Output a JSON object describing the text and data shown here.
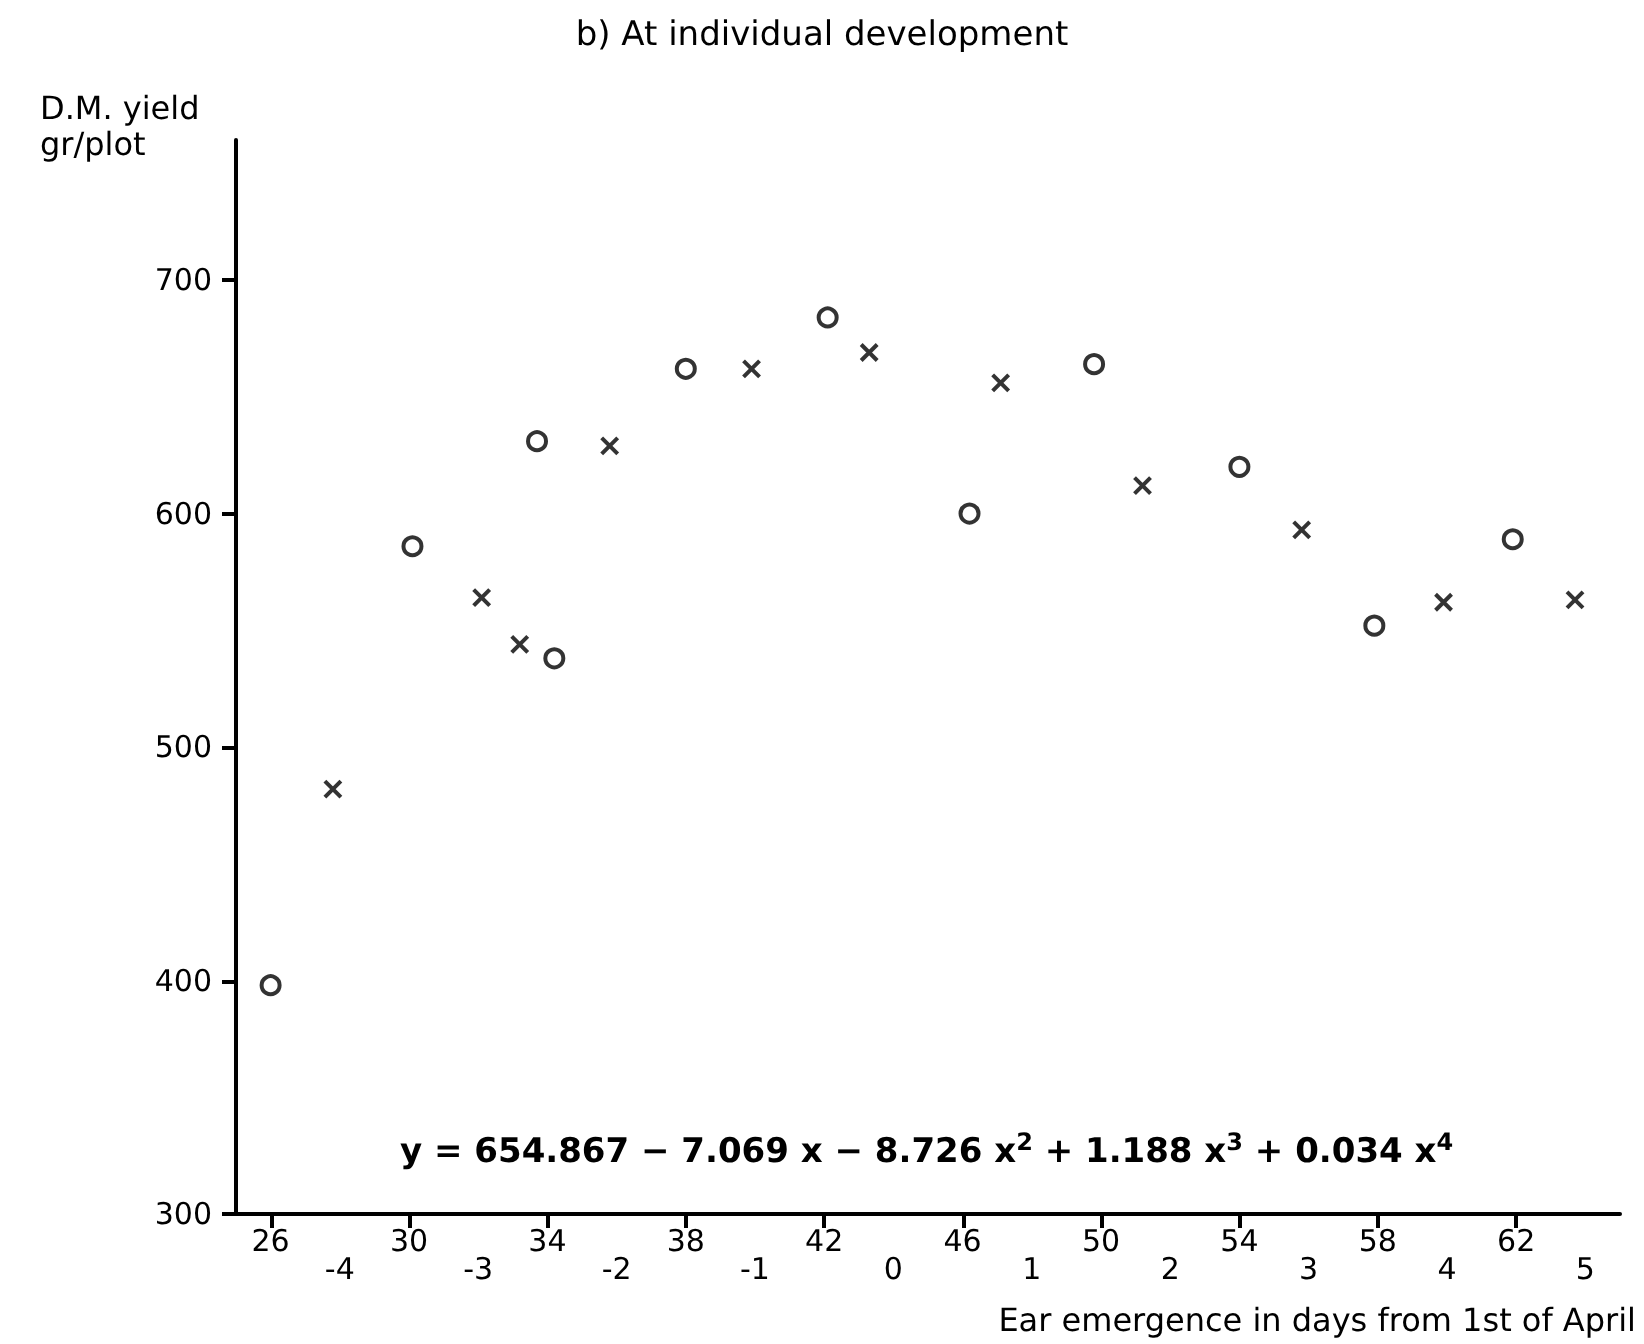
{
  "chart_data": {
    "type": "scatter",
    "title": "b) At individual development",
    "ylabel": "D.M. yield\ngr/plot",
    "xlabel": "Ear emergence in days from 1st of April",
    "annotations": [
      "y = 654.867 − 7.069 x − 8.726 x$^{2}$ + 1.188 x$^{3}$ + 0.034 x$^{4}$"
    ],
    "xlim": [
      25,
      65
    ],
    "xticks": [
      26,
      30,
      34,
      38,
      42,
      46,
      50,
      54,
      58,
      62
    ],
    "x2lim": [
      -4.75,
      5.25
    ],
    "x2ticks": [
      -4,
      -3,
      -2,
      -1,
      0,
      1,
      2,
      3,
      4,
      5
    ],
    "ylim": [
      300,
      760
    ],
    "yticks": [
      300,
      400,
      500,
      600,
      700
    ],
    "grid": false,
    "series": [
      {
        "marker": "circle",
        "color": "#000000",
        "x": [
          26.0,
          30.1,
          33.7,
          34.2,
          38.0,
          42.1,
          46.2,
          49.8,
          54.0,
          57.9,
          61.9
        ],
        "values": [
          398,
          586,
          631,
          538,
          662,
          684,
          600,
          664,
          620,
          552,
          589
        ]
      },
      {
        "marker": "cross",
        "color": "#000000",
        "x": [
          27.8,
          32.1,
          33.2,
          35.8,
          39.9,
          43.3,
          47.1,
          51.2,
          55.8,
          59.9,
          63.7
        ],
        "values": [
          482,
          564,
          544,
          629,
          662,
          669,
          656,
          612,
          593,
          562,
          563
        ]
      }
    ]
  }
}
